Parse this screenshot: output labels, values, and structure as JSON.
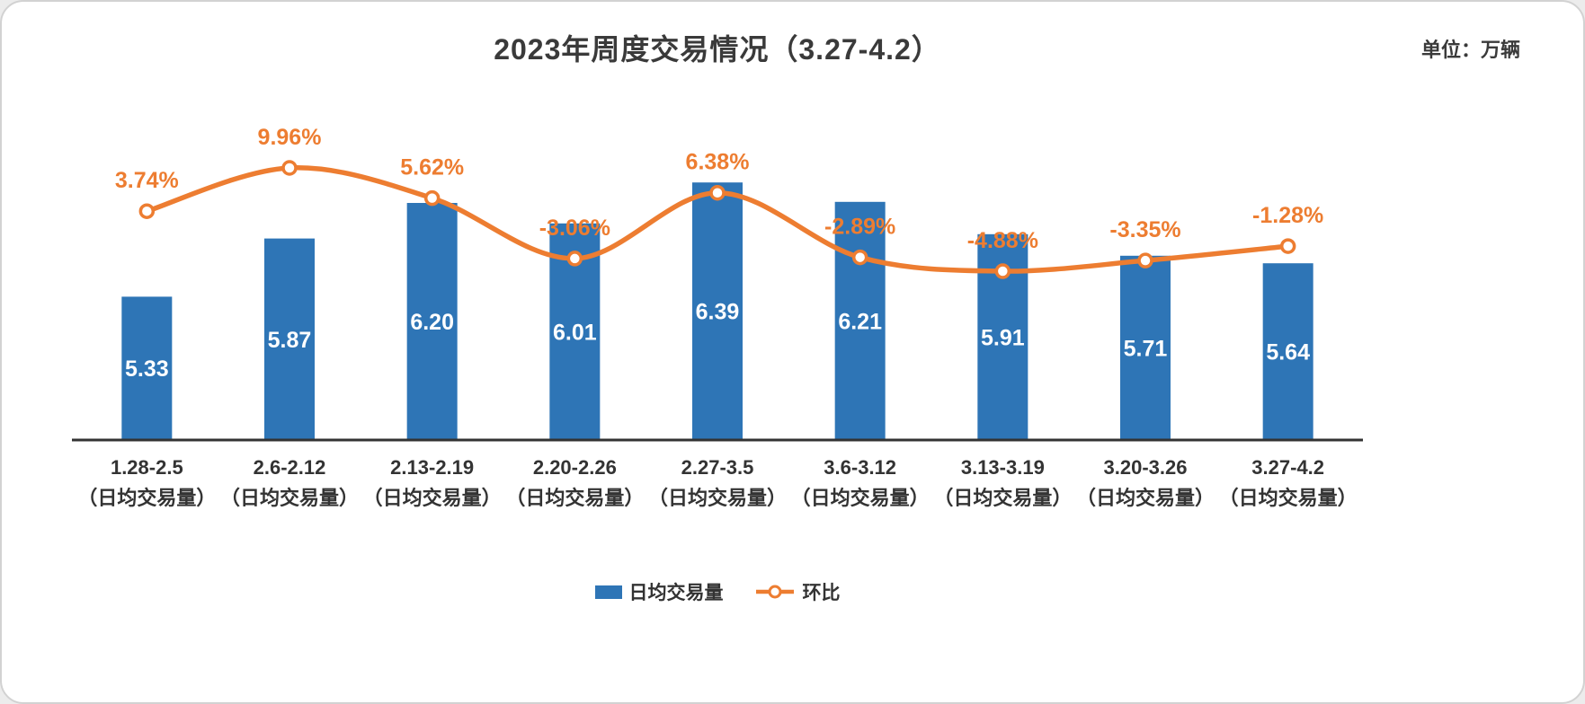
{
  "header": {
    "title": "2023年周度交易情况（3.27-4.2）",
    "unit_label": "单位：万辆"
  },
  "legend": {
    "bar_label": "日均交易量",
    "line_label": "环比"
  },
  "colors": {
    "bar": "#2E75B6",
    "line": "#ED7D31",
    "axis": "#333333",
    "label_dark": "#333333",
    "bar_value_text": "#FFFFFF",
    "background": "#FFFFFF"
  },
  "chart_data": {
    "type": "combo (bar + line)",
    "title": "2023年周度交易情况（3.27-4.2）",
    "unit": "万辆",
    "categories": [
      "1.28-2.5",
      "2.6-2.12",
      "2.13-2.19",
      "2.20-2.26",
      "2.27-3.5",
      "3.6-3.12",
      "3.13-3.19",
      "3.20-3.26",
      "3.27-4.2"
    ],
    "category_sublabel": "（日均交易量）",
    "bar_axis_min": 4,
    "series": [
      {
        "name": "日均交易量",
        "type": "bar",
        "values": [
          5.33,
          5.87,
          6.2,
          6.01,
          6.39,
          6.21,
          5.91,
          5.71,
          5.64
        ],
        "labels": [
          "5.33",
          "5.87",
          "6.20",
          "6.01",
          "6.39",
          "6.21",
          "5.91",
          "5.71",
          "5.64"
        ]
      },
      {
        "name": "环比",
        "type": "line",
        "unit": "%",
        "values": [
          3.74,
          9.96,
          5.62,
          -3.06,
          6.38,
          -2.89,
          -4.88,
          -3.35,
          -1.28
        ],
        "labels": [
          "3.74%",
          "9.96%",
          "5.62%",
          "-3.06%",
          "6.38%",
          "-2.89%",
          "-4.88%",
          "-3.35%",
          "-1.28%"
        ]
      }
    ],
    "legend_position": "bottom",
    "grid": false
  }
}
